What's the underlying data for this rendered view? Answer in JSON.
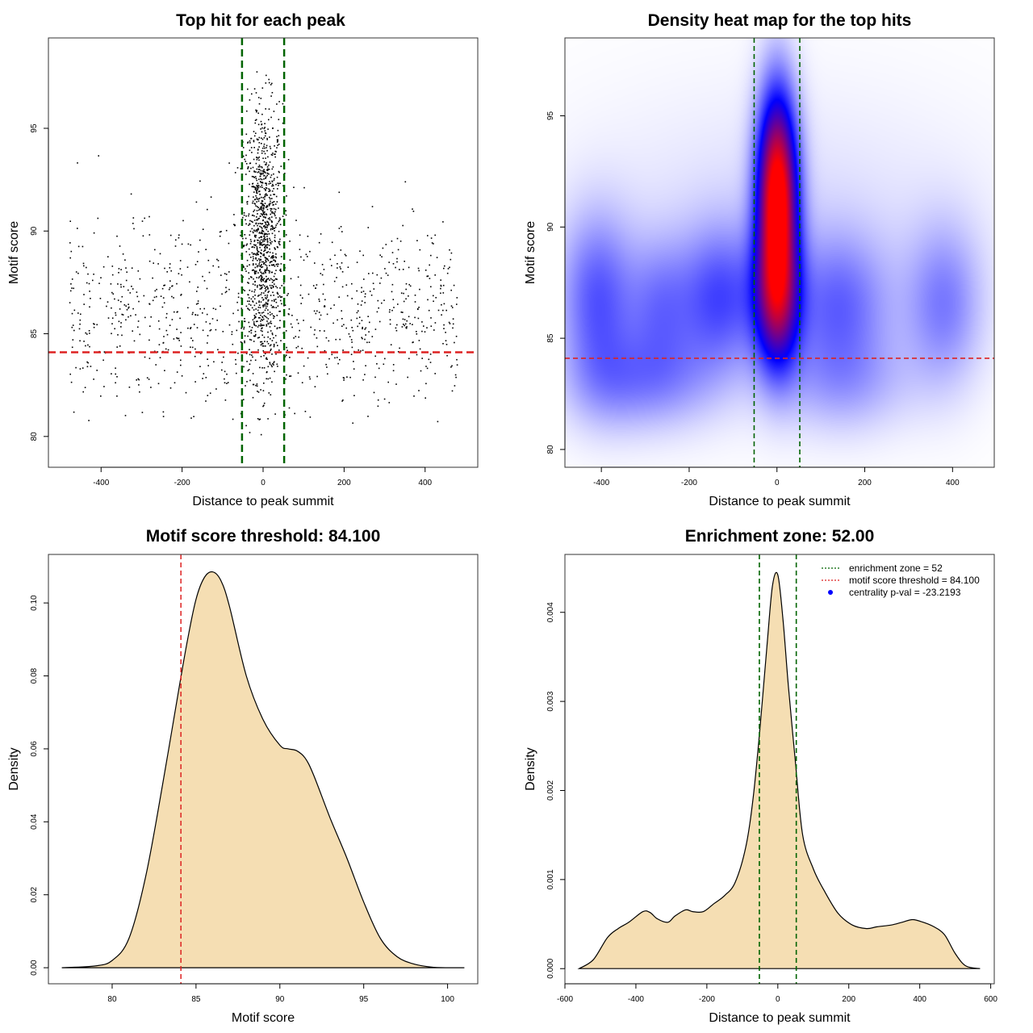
{
  "chart_data": [
    {
      "type": "scatter",
      "title": "Top hit for each peak",
      "xlabel": "Distance to peak summit",
      "ylabel": "Motif score",
      "xlim": [
        -530,
        530
      ],
      "ylim": [
        78.5,
        99.4
      ],
      "xticks": [
        -400,
        -200,
        0,
        200,
        400
      ],
      "yticks": [
        80,
        85,
        90,
        95
      ],
      "grid": false,
      "enrichment_zone": 52,
      "score_threshold": 84.1,
      "colors": {
        "points": "#000000",
        "zone_lines": "#006400",
        "threshold_line": "#dd2222"
      },
      "point_clusters": [
        {
          "x_center": 0,
          "x_spread": 48,
          "y_center": 88,
          "y_spread": 5,
          "count": 1100,
          "note": "central"
        },
        {
          "x_center": 0,
          "x_spread": 480,
          "y_center": 86,
          "y_spread": 2.5,
          "count": 900,
          "note": "uniform background"
        }
      ]
    },
    {
      "type": "heatmap",
      "title": "Density heat map for the top hits",
      "xlabel": "Distance to peak summit",
      "ylabel": "Motif score",
      "xlim": [
        -483,
        495
      ],
      "ylim": [
        79.2,
        98.5
      ],
      "xticks": [
        -400,
        -200,
        0,
        200,
        400
      ],
      "yticks": [
        80,
        85,
        90,
        95
      ],
      "grid": false,
      "enrichment_zone": 52,
      "score_threshold": 84.1,
      "colors": {
        "low": "#ffffff",
        "mid": "#0000ff",
        "high": "#ff0000",
        "zone_lines": "#006400",
        "threshold_line": "#dd2222"
      },
      "density_peak": {
        "x": 0,
        "y": 92.5
      }
    },
    {
      "type": "area",
      "title": "Motif score threshold: 84.100",
      "xlabel": "Motif score",
      "ylabel": "Density",
      "xlim": [
        76.2,
        101.8
      ],
      "ylim": [
        -0.0044,
        0.1133
      ],
      "xticks": [
        80,
        85,
        90,
        95,
        100
      ],
      "yticks": [
        0.0,
        0.02,
        0.04,
        0.06,
        0.08,
        0.1
      ],
      "ytick_labels": [
        "0.00",
        "0.02",
        "0.04",
        "0.06",
        "0.08",
        "0.10"
      ],
      "grid": false,
      "score_threshold": 84.1,
      "colors": {
        "fill": "#f5deb3",
        "line": "#000000",
        "threshold_line": "#dd2222"
      },
      "x": [
        77,
        79,
        80,
        81,
        82,
        83,
        84,
        84.5,
        85,
        85.5,
        86,
        86.5,
        87,
        88,
        89,
        90,
        90.5,
        91,
        91.5,
        92,
        93,
        94,
        95,
        96,
        97,
        98,
        99,
        100,
        101
      ],
      "y": [
        0.0,
        0.0005,
        0.002,
        0.008,
        0.025,
        0.05,
        0.077,
        0.09,
        0.101,
        0.107,
        0.1085,
        0.106,
        0.099,
        0.08,
        0.068,
        0.061,
        0.06,
        0.0595,
        0.0575,
        0.053,
        0.041,
        0.03,
        0.018,
        0.008,
        0.003,
        0.001,
        0.0002,
        0.0,
        0.0
      ]
    },
    {
      "type": "area",
      "title": "Enrichment zone: 52.00",
      "xlabel": "Distance to peak summit",
      "ylabel": "Density",
      "xlim": [
        -600,
        610
      ],
      "ylim": [
        -0.00017,
        0.00465
      ],
      "xticks": [
        -600,
        -400,
        -200,
        0,
        200,
        400,
        600
      ],
      "yticks": [
        0.0,
        0.001,
        0.002,
        0.003,
        0.004
      ],
      "ytick_labels": [
        "0.000",
        "0.001",
        "0.002",
        "0.003",
        "0.004"
      ],
      "grid": false,
      "enrichment_zone": 52,
      "colors": {
        "fill": "#f5deb3",
        "line": "#000000",
        "zone_lines": "#006400",
        "threshold_legend": "#dd2222",
        "pval_marker": "#0000ff"
      },
      "legend_position": "top-right",
      "legend": [
        {
          "label": "enrichment zone = 52",
          "style": "line",
          "color": "#006400"
        },
        {
          "label": "motif score threshold = 84.100",
          "style": "line",
          "color": "#dd2222"
        },
        {
          "label": "centrality p-val = -23.2193",
          "style": "point",
          "color": "#0000ff"
        }
      ],
      "x": [
        -560,
        -520,
        -480,
        -450,
        -420,
        -380,
        -360,
        -340,
        -310,
        -290,
        -260,
        -240,
        -210,
        -180,
        -150,
        -120,
        -90,
        -70,
        -50,
        -30,
        -15,
        0,
        15,
        30,
        50,
        70,
        100,
        130,
        170,
        210,
        250,
        280,
        320,
        350,
        380,
        410,
        440,
        470,
        500,
        530,
        570
      ],
      "y": [
        0.0,
        0.0001,
        0.00035,
        0.00045,
        0.00052,
        0.00064,
        0.00063,
        0.00056,
        0.00052,
        0.00059,
        0.00066,
        0.00064,
        0.00064,
        0.00073,
        0.00082,
        0.00097,
        0.00137,
        0.0019,
        0.00271,
        0.00365,
        0.0043,
        0.00442,
        0.0039,
        0.00316,
        0.0023,
        0.0015,
        0.00112,
        0.00088,
        0.00062,
        0.00049,
        0.00045,
        0.00047,
        0.00049,
        0.00052,
        0.00055,
        0.00052,
        0.00047,
        0.00038,
        0.00017,
        3e-05,
        0.0
      ]
    }
  ]
}
